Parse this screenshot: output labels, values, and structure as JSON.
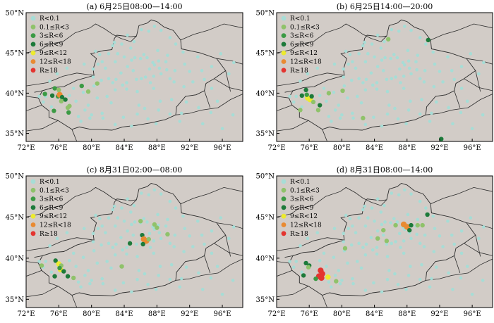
{
  "colors": {
    "background": "#d2ccc7",
    "boundary": "#2b2b2b",
    "R<0.1": "#a6ddd6",
    "0.1≤R<3": "#8fc26a",
    "3≤R<6": "#3b9a44",
    "6≤R<9": "#1d7a3a",
    "9≤R<12": "#ecea2f",
    "12≤R<18": "#e98a31",
    "R≥18": "#e4342f"
  },
  "legend": [
    {
      "key": "R<0.1",
      "label": "R<0.1"
    },
    {
      "key": "0.1≤R<3",
      "label": "0.1≤R<3"
    },
    {
      "key": "3≤R<6",
      "label": "3≤R<6"
    },
    {
      "key": "6≤R<9",
      "label": "6≤R<9"
    },
    {
      "key": "9≤R<12",
      "label": "9≤R<12"
    },
    {
      "key": "12≤R<18",
      "label": "12≤R<18"
    },
    {
      "key": "R≥18",
      "label": "R≥18"
    }
  ],
  "axes": {
    "x_ticks": [
      "72°E",
      "76°E",
      "80°E",
      "84°E",
      "88°E",
      "92°E",
      "96°E"
    ],
    "y_ticks": [
      "50°N",
      "45°N",
      "40°N",
      "35°N"
    ]
  },
  "panels": [
    {
      "title": "(a) 6月25日08:00—14:00",
      "points": [
        [
          75.5,
          40.6,
          "3≤R<6"
        ],
        [
          75.2,
          39.7,
          "6≤R<9"
        ],
        [
          75.9,
          39.6,
          "3≤R<6"
        ],
        [
          76.1,
          39.8,
          "12≤R<18"
        ],
        [
          76.4,
          39.5,
          "6≤R<9"
        ],
        [
          76.8,
          39.2,
          "6≤R<9"
        ],
        [
          76.3,
          39.0,
          "0.1≤R<3"
        ],
        [
          75.4,
          37.8,
          "3≤R<6"
        ],
        [
          77.3,
          38.4,
          "0.1≤R<3"
        ],
        [
          77.1,
          38.2,
          "0.1≤R<3"
        ],
        [
          77.2,
          37.6,
          "3≤R<6"
        ],
        [
          78.8,
          40.9,
          "3≤R<6"
        ],
        [
          79.6,
          40.2,
          "0.1≤R<3"
        ],
        [
          80.7,
          41.2,
          "0.1≤R<3"
        ],
        [
          74.3,
          39.9,
          "3≤R<6"
        ],
        [
          76.0,
          40.4,
          "0.1≤R<3"
        ]
      ]
    },
    {
      "title": "(b) 6月25日14:00—20:00",
      "points": [
        [
          75.6,
          40.4,
          "6≤R<9"
        ],
        [
          75.1,
          39.7,
          "6≤R<9"
        ],
        [
          75.8,
          39.4,
          "9≤R<12"
        ],
        [
          76.1,
          39.2,
          "9≤R<12"
        ],
        [
          76.3,
          39.6,
          "6≤R<9"
        ],
        [
          76.5,
          38.9,
          "0.1≤R<3"
        ],
        [
          75.7,
          39.8,
          "3≤R<6"
        ],
        [
          77.3,
          38.5,
          "6≤R<9"
        ],
        [
          77.1,
          37.9,
          "0.1≤R<3"
        ],
        [
          78.4,
          40.0,
          "0.1≤R<3"
        ],
        [
          80.1,
          40.3,
          "0.1≤R<3"
        ],
        [
          82.6,
          36.9,
          "0.1≤R<3"
        ],
        [
          85.7,
          46.7,
          "0.1≤R<3"
        ],
        [
          90.6,
          46.6,
          "6≤R<9"
        ],
        [
          92.2,
          34.3,
          "6≤R<9"
        ],
        [
          74.9,
          37.9,
          "0.1≤R<3"
        ]
      ]
    },
    {
      "title": "(c) 8月31日02:00—08:00",
      "points": [
        [
          75.6,
          39.7,
          "6≤R<9"
        ],
        [
          76.0,
          39.3,
          "9≤R<12"
        ],
        [
          76.3,
          39.1,
          "0.1≤R<3"
        ],
        [
          76.2,
          38.6,
          "9≤R<12"
        ],
        [
          76.1,
          38.8,
          "3≤R<6"
        ],
        [
          76.6,
          38.4,
          "6≤R<9"
        ],
        [
          75.5,
          37.8,
          "6≤R<9"
        ],
        [
          77.1,
          37.8,
          "6≤R<9"
        ],
        [
          77.8,
          37.6,
          "0.1≤R<3"
        ],
        [
          83.7,
          39.0,
          "0.1≤R<3"
        ],
        [
          84.7,
          41.8,
          "6≤R<9"
        ],
        [
          86.2,
          42.8,
          "6≤R<9"
        ],
        [
          86.4,
          42.3,
          "12≤R<18"
        ],
        [
          86.7,
          42.1,
          "12≤R<18"
        ],
        [
          86.3,
          41.7,
          "6≤R<9"
        ],
        [
          87.0,
          42.3,
          "0.1≤R<3"
        ],
        [
          87.7,
          44.1,
          "0.1≤R<3"
        ],
        [
          88.0,
          43.7,
          "0.1≤R<3"
        ],
        [
          89.3,
          42.9,
          "0.1≤R<3"
        ],
        [
          86.0,
          44.5,
          "0.1≤R<3"
        ],
        [
          73.9,
          39.1,
          "0.1≤R<3"
        ]
      ]
    },
    {
      "title": "(d) 8月31日08:00—14:00",
      "points": [
        [
          75.6,
          39.4,
          "6≤R<9"
        ],
        [
          76.0,
          39.1,
          "6≤R<9"
        ],
        [
          75.9,
          38.9,
          "0.1≤R<3"
        ],
        [
          75.3,
          37.9,
          "6≤R<9"
        ],
        [
          77.4,
          38.5,
          "R≥18"
        ],
        [
          77.6,
          38.1,
          "R≥18"
        ],
        [
          77.2,
          37.8,
          "R≥18"
        ],
        [
          77.5,
          37.6,
          "R≥18"
        ],
        [
          78.3,
          37.7,
          "9≤R<12"
        ],
        [
          79.3,
          37.2,
          "0.1≤R<3"
        ],
        [
          76.8,
          37.5,
          "3≤R<6"
        ],
        [
          84.4,
          42.4,
          "0.1≤R<3"
        ],
        [
          85.5,
          42.1,
          "0.1≤R<3"
        ],
        [
          85.1,
          43.4,
          "0.1≤R<3"
        ],
        [
          86.6,
          44.0,
          "0.1≤R<3"
        ],
        [
          87.6,
          44.1,
          "12≤R<18"
        ],
        [
          88.0,
          43.8,
          "12≤R<18"
        ],
        [
          88.3,
          43.4,
          "6≤R<9"
        ],
        [
          88.5,
          44.0,
          "6≤R<9"
        ],
        [
          89.3,
          44.0,
          "0.1≤R<3"
        ],
        [
          89.9,
          44.0,
          "0.1≤R<3"
        ],
        [
          90.5,
          45.3,
          "6≤R<9"
        ],
        [
          80.4,
          41.2,
          "0.1≤R<3"
        ]
      ]
    }
  ]
}
